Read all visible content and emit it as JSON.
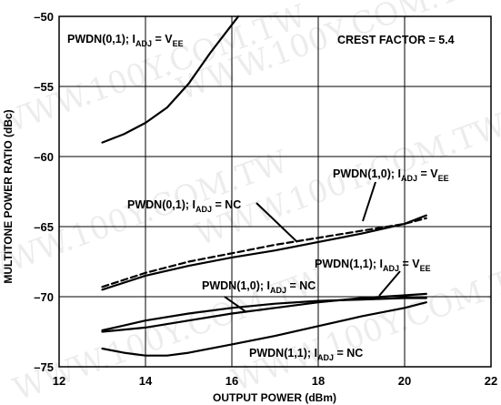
{
  "chart_data": {
    "type": "line",
    "title": "",
    "xlabel": "OUTPUT POWER (dBm)",
    "ylabel": "MULTITONE POWER RATIO (dBc)",
    "xlim": [
      12,
      22
    ],
    "ylim": [
      -75,
      -50
    ],
    "x_ticks": [
      "12",
      "14",
      "16",
      "18",
      "20",
      "22"
    ],
    "y_ticks": [
      "–50",
      "–55",
      "–60",
      "–65",
      "–70",
      "–75"
    ],
    "grid": true,
    "watermark": "WWW.100Y.COM.TW",
    "annotations": [
      {
        "id": "crest",
        "text": "CREST FACTOR = 5.4"
      },
      {
        "id": "p01_vee",
        "main": "PWDN(0,1); I",
        "sub": "ADJ",
        "tail": " = V",
        "tail_sub": "EE"
      },
      {
        "id": "p10_vee",
        "main": "PWDN(1,0); I",
        "sub": "ADJ",
        "tail": " = V",
        "tail_sub": "EE"
      },
      {
        "id": "p01_nc",
        "main": "PWDN(0,1); I",
        "sub": "ADJ",
        "tail": " = NC",
        "tail_sub": ""
      },
      {
        "id": "p11_vee",
        "main": "PWDN(1,1); I",
        "sub": "ADJ",
        "tail": " = V",
        "tail_sub": "EE"
      },
      {
        "id": "p10_nc",
        "main": "PWDN(1,0); I",
        "sub": "ADJ",
        "tail": " = NC",
        "tail_sub": ""
      },
      {
        "id": "p11_nc",
        "main": "PWDN(1,1); I",
        "sub": "ADJ",
        "tail": " = NC",
        "tail_sub": ""
      }
    ],
    "series": [
      {
        "id": "pwdn01_vee",
        "style": "solid",
        "x": [
          13.0,
          13.5,
          14.0,
          14.5,
          15.0,
          15.5,
          16.0,
          16.15
        ],
        "y": [
          -59.0,
          -58.4,
          -57.6,
          -56.5,
          -54.8,
          -52.6,
          -50.6,
          -50.0
        ]
      },
      {
        "id": "pwdn10_vee",
        "style": "solid",
        "x": [
          13.0,
          14.0,
          15.0,
          16.0,
          17.0,
          18.0,
          19.0,
          20.0,
          20.5
        ],
        "y": [
          -69.5,
          -68.5,
          -67.8,
          -67.2,
          -66.7,
          -66.1,
          -65.5,
          -64.8,
          -64.2
        ]
      },
      {
        "id": "pwdn01_nc",
        "style": "dashed",
        "x": [
          13.0,
          14.0,
          15.0,
          16.0,
          17.0,
          18.0,
          19.0,
          20.0,
          20.5
        ],
        "y": [
          -69.3,
          -68.3,
          -67.5,
          -66.9,
          -66.3,
          -65.8,
          -65.3,
          -64.8,
          -64.4
        ]
      },
      {
        "id": "pwdn11_vee",
        "style": "solid",
        "x": [
          13.0,
          14.0,
          15.0,
          16.0,
          17.0,
          18.0,
          19.0,
          20.0,
          20.5
        ],
        "y": [
          -72.5,
          -72.2,
          -71.7,
          -71.2,
          -70.8,
          -70.4,
          -70.1,
          -69.9,
          -69.8
        ]
      },
      {
        "id": "pwdn10_nc",
        "style": "solid",
        "x": [
          13.0,
          14.0,
          15.0,
          16.0,
          17.0,
          18.0,
          19.0,
          20.0,
          20.5
        ],
        "y": [
          -72.4,
          -71.7,
          -71.2,
          -70.8,
          -70.5,
          -70.3,
          -70.2,
          -70.1,
          -70.1
        ]
      },
      {
        "id": "pwdn11_nc",
        "style": "solid",
        "x": [
          13.0,
          13.5,
          14.0,
          14.5,
          15.0,
          16.0,
          17.0,
          18.0,
          19.0,
          20.0,
          20.5
        ],
        "y": [
          -73.7,
          -74.0,
          -74.2,
          -74.2,
          -74.0,
          -73.4,
          -72.8,
          -72.1,
          -71.4,
          -70.8,
          -70.4
        ]
      }
    ]
  }
}
